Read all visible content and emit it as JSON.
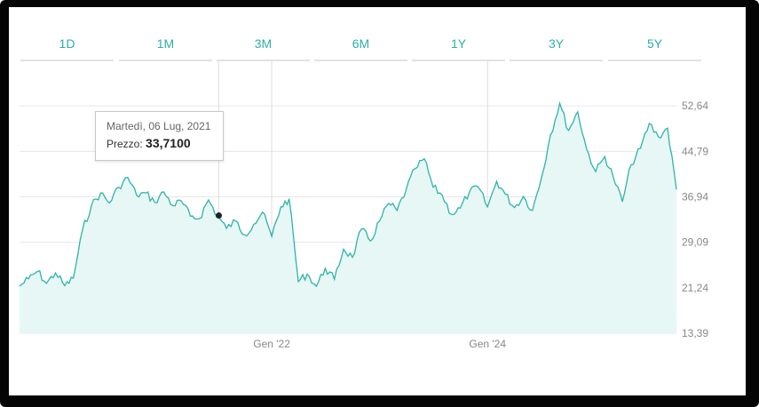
{
  "tabs": [
    {
      "label": "1D",
      "active": false
    },
    {
      "label": "1M",
      "active": false
    },
    {
      "label": "3M",
      "active": false
    },
    {
      "label": "6M",
      "active": false
    },
    {
      "label": "1Y",
      "active": false
    },
    {
      "label": "3Y",
      "active": false
    },
    {
      "label": "5Y",
      "active": true
    }
  ],
  "tooltip": {
    "date": "Martedì, 06 Lug, 2021",
    "label": "Prezzo:",
    "value": "33,7100"
  },
  "colors": {
    "line": "#2eb3aa",
    "fill": "#e6f7f6",
    "accent": "#2eaea6",
    "active_tab": "#111111"
  },
  "chart_data": {
    "type": "area",
    "title": "",
    "xlabel": "",
    "ylabel": "",
    "y_axis_position": "right",
    "ylim": [
      13.39,
      60.49
    ],
    "y_ticks": [
      13.39,
      21.24,
      29.09,
      36.94,
      44.79,
      52.64
    ],
    "y_tick_labels": [
      "13,39",
      "21,24",
      "29,09",
      "36,94",
      "44,79",
      "52,64"
    ],
    "x_tick_labels": [
      {
        "label": "Gen '22",
        "date": "2022-01-01"
      },
      {
        "label": "Gen '24",
        "date": "2024-01-01"
      }
    ],
    "vertical_gridlines": [
      "2021-07-06",
      "2022-01-01",
      "2024-01-01"
    ],
    "highlight_point": {
      "date": "2021-07-06",
      "value": 33.71
    },
    "series": [
      {
        "name": "",
        "x": [
          "2019-09",
          "2019-10",
          "2019-11",
          "2019-12",
          "2020-01",
          "2020-02",
          "2020-03",
          "2020-04",
          "2020-05",
          "2020-06",
          "2020-07",
          "2020-08",
          "2020-09",
          "2020-10",
          "2020-11",
          "2020-12",
          "2021-01",
          "2021-02",
          "2021-03",
          "2021-04",
          "2021-05",
          "2021-06",
          "2021-07",
          "2021-08",
          "2021-09",
          "2021-10",
          "2021-11",
          "2021-12",
          "2022-01",
          "2022-02",
          "2022-03",
          "2022-04",
          "2022-05",
          "2022-06",
          "2022-07",
          "2022-08",
          "2022-09",
          "2022-10",
          "2022-11",
          "2022-12",
          "2023-01",
          "2023-02",
          "2023-03",
          "2023-04",
          "2023-05",
          "2023-06",
          "2023-07",
          "2023-08",
          "2023-09",
          "2023-10",
          "2023-11",
          "2023-12",
          "2024-01",
          "2024-02",
          "2024-03",
          "2024-04",
          "2024-05",
          "2024-06",
          "2024-07",
          "2024-08",
          "2024-09",
          "2024-10",
          "2024-11",
          "2024-12",
          "2025-01",
          "2025-02",
          "2025-03",
          "2025-04",
          "2025-05",
          "2025-06",
          "2025-07",
          "2025-08",
          "2025-09",
          "2025-10"
        ],
        "values": [
          21.5,
          22.8,
          24.1,
          22.0,
          23.8,
          21.6,
          22.9,
          31.2,
          35.4,
          37.6,
          35.9,
          38.6,
          40.3,
          37.2,
          37.6,
          36.0,
          37.8,
          35.4,
          36.2,
          33.6,
          33.2,
          36.4,
          33.7,
          31.5,
          32.8,
          30.4,
          32.2,
          34.3,
          30.1,
          35.2,
          36.6,
          22.3,
          23.6,
          21.5,
          24.6,
          22.7,
          27.9,
          26.5,
          31.4,
          29.3,
          32.8,
          35.8,
          34.6,
          38.2,
          41.8,
          43.5,
          38.6,
          37.2,
          33.9,
          35.0,
          37.8,
          38.6,
          35.2,
          39.6,
          37.4,
          35.1,
          37.0,
          34.6,
          40.2,
          47.6,
          53.1,
          48.4,
          51.6,
          45.2,
          41.3,
          43.9,
          40.4,
          36.1,
          42.5,
          45.3,
          49.6,
          47.3,
          48.8,
          38.2
        ]
      }
    ]
  }
}
